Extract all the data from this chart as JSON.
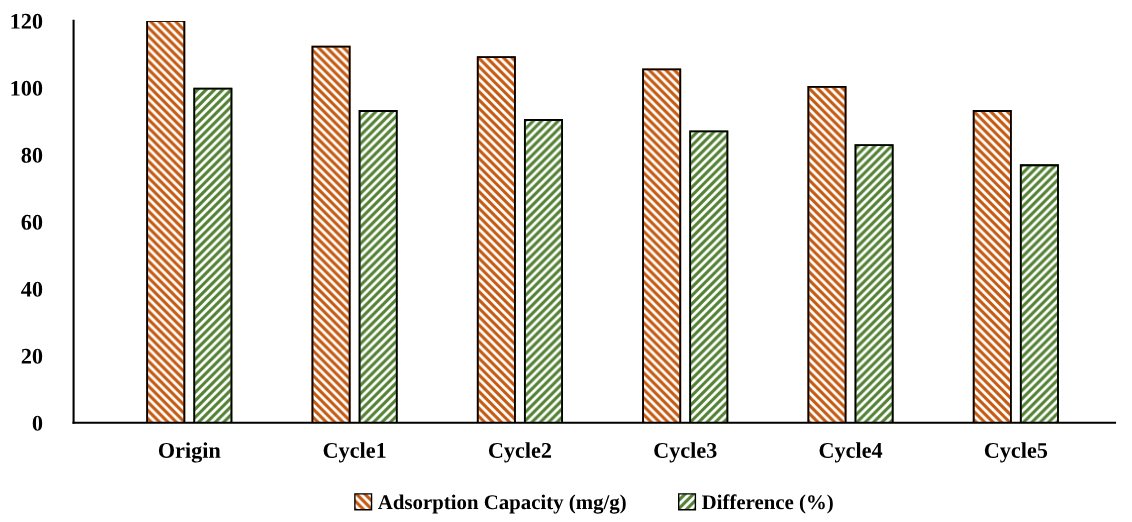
{
  "chart_data": {
    "type": "bar",
    "categories": [
      "Origin",
      "Cycle1",
      "Cycle2",
      "Cycle3",
      "Cycle4",
      "Cycle5"
    ],
    "series": [
      {
        "name": "Adsorption Capacity (mg/g)",
        "color": "#c55a11",
        "values": [
          120,
          112.3,
          109.2,
          105.5,
          100.3,
          93.1
        ]
      },
      {
        "name": "Difference (%)",
        "color": "#548235",
        "values": [
          99.8,
          93.1,
          90.4,
          87.0,
          82.9,
          76.9
        ]
      }
    ],
    "ylim": [
      0,
      120
    ],
    "yticks": [
      0,
      20,
      40,
      60,
      80,
      100,
      120
    ],
    "grid": false,
    "legend": "bottom"
  }
}
